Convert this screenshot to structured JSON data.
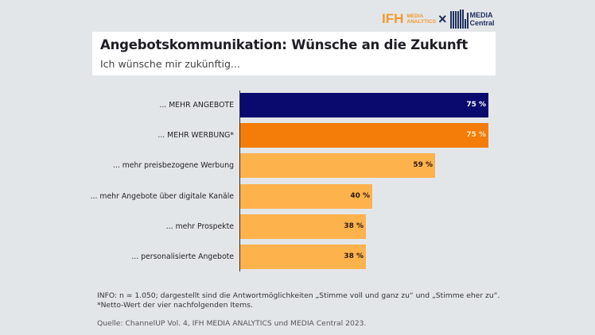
{
  "logos": {
    "ifh": "IFH",
    "ifh_sub_1": "MEDIA",
    "ifh_sub_2": "ANALYTICS",
    "separator": "×",
    "mc_1": "MEDIA",
    "mc_2": "Central"
  },
  "header": {
    "title": "Angebotskommunikation: Wünsche an die Zukunft",
    "subtitle": "Ich wünsche mir zukünftig..."
  },
  "colors": {
    "navy": "#0a0a6e",
    "orange": "#f47c08",
    "light_orange": "#fdb24c",
    "background": "#e3e6e9"
  },
  "chart_data": {
    "type": "bar",
    "orientation": "horizontal",
    "title": "Angebotskommunikation: Wünsche an die Zukunft",
    "subtitle": "Ich wünsche mir zukünftig...",
    "categories": [
      "... MEHR ANGEBOTE",
      "... MEHR WERBUNG*",
      "... mehr preisbezogene Werbung",
      "... mehr Angebote über digitale Kanäle",
      "... mehr Prospekte",
      "... personalisierte Angebote"
    ],
    "values": [
      75,
      75,
      59,
      40,
      38,
      38
    ],
    "value_labels": [
      "75 %",
      "75 %",
      "59 %",
      "40 %",
      "38 %",
      "38 %"
    ],
    "bar_colors": [
      "#0a0a6e",
      "#f47c08",
      "#fdb24c",
      "#fdb24c",
      "#fdb24c",
      "#fdb24c"
    ],
    "xlabel": "",
    "ylabel": "",
    "xlim": [
      0,
      75
    ],
    "unit": "%",
    "grid": false,
    "legend": null
  },
  "footer": {
    "info": "INFO: n = 1.050; dargestellt sind die Antwortmöglichkeiten „Stimme voll und ganz zu“ und „Stimme eher zu“.",
    "note": "*Netto-Wert der vier nachfolgenden Items.",
    "source": "Quelle: ChannelUP Vol. 4, IFH MEDIA ANALYTICS und MEDIA Central 2023."
  }
}
